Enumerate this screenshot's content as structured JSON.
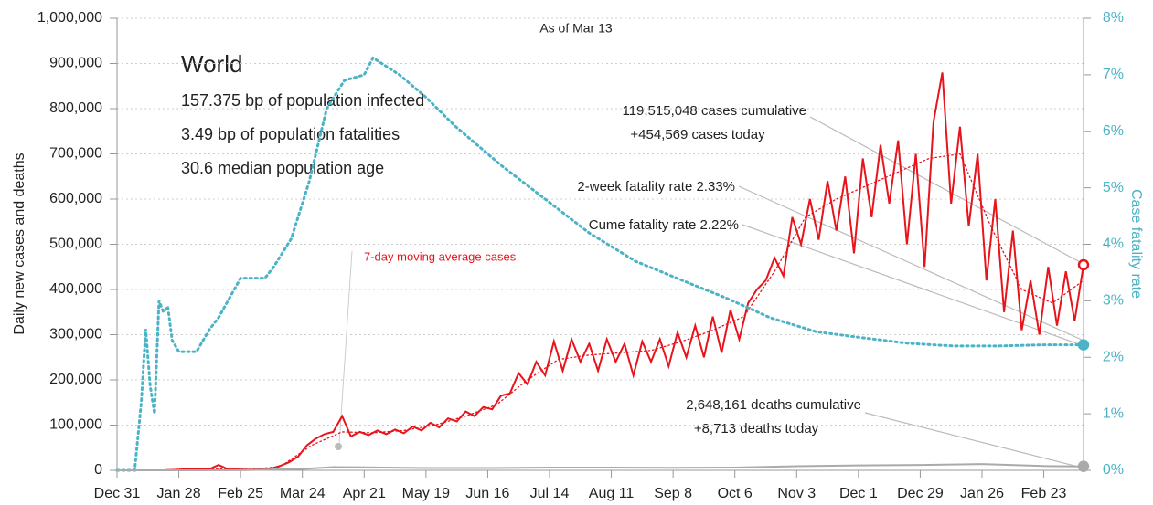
{
  "chart_data": {
    "type": "line",
    "title": "As of Mar 13",
    "ylabel": "Daily new cases and deaths",
    "y2label": "Case fatality rate",
    "region": "World",
    "stats": [
      "157.375 bp of population infected",
      "3.49 bp of population fatalities",
      "30.6 median population age"
    ],
    "annotations": {
      "cases_cumulative": "119,515,048 cases cumulative",
      "cases_today": "+454,569 cases today",
      "two_week_rate": "2-week fatality rate 2.33%",
      "cume_rate": "Cume fatality rate 2.22%",
      "deaths_cumulative": "2,648,161 deaths cumulative",
      "deaths_today": "+8,713 deaths today"
    },
    "xlim": [
      0,
      438
    ],
    "xticks": [
      {
        "value": 0,
        "label": "Dec 31"
      },
      {
        "value": 28,
        "label": "Jan 28"
      },
      {
        "value": 56,
        "label": "Feb 25"
      },
      {
        "value": 84,
        "label": "Mar 24"
      },
      {
        "value": 112,
        "label": "Apr 21"
      },
      {
        "value": 140,
        "label": "May 19"
      },
      {
        "value": 168,
        "label": "Jun 16"
      },
      {
        "value": 196,
        "label": "Jul 14"
      },
      {
        "value": 224,
        "label": "Aug 11"
      },
      {
        "value": 252,
        "label": "Sep 8"
      },
      {
        "value": 280,
        "label": "Oct 6"
      },
      {
        "value": 308,
        "label": "Nov 3"
      },
      {
        "value": 336,
        "label": "Dec 1"
      },
      {
        "value": 364,
        "label": "Dec 29"
      },
      {
        "value": 392,
        "label": "Jan 26"
      },
      {
        "value": 420,
        "label": "Feb 23"
      }
    ],
    "ylim": [
      0,
      1000000
    ],
    "yticks": [
      0,
      {
        "value": 100000,
        "label": "100,000"
      },
      {
        "value": 200000,
        "label": "200,000"
      },
      {
        "value": 300000,
        "label": "300,000"
      },
      {
        "value": 400000,
        "label": "400,000"
      },
      {
        "value": 500000,
        "label": "500,000"
      },
      {
        "value": 600000,
        "label": "600,000"
      },
      {
        "value": 700000,
        "label": "700,000"
      },
      {
        "value": 800000,
        "label": "800,000"
      },
      {
        "value": 900000,
        "label": "900,000"
      },
      {
        "value": 1000000,
        "label": "1,000,000"
      }
    ],
    "y2lim": [
      0,
      8
    ],
    "y2ticks": [
      {
        "value": 0,
        "label": "0%"
      },
      {
        "value": 1,
        "label": "1%"
      },
      {
        "value": 2,
        "label": "2%"
      },
      {
        "value": 3,
        "label": "3%"
      },
      {
        "value": 4,
        "label": "4%"
      },
      {
        "value": 5,
        "label": "5%"
      },
      {
        "value": 6,
        "label": "6%"
      },
      {
        "value": 7,
        "label": "7%"
      },
      {
        "value": 8,
        "label": "8%"
      }
    ],
    "grid": true,
    "series": [
      {
        "color": "#e8141c",
        "style": "solid",
        "axis": "y",
        "x": [
          2,
          6,
          10,
          14,
          18,
          22,
          26,
          30,
          34,
          38,
          42,
          46,
          50,
          54,
          58,
          62,
          66,
          70,
          74,
          78,
          82,
          86,
          90,
          94,
          98,
          102,
          106,
          110,
          114,
          118,
          122,
          126,
          130,
          134,
          138,
          142,
          146,
          150,
          154,
          158,
          162,
          166,
          170,
          174,
          178,
          182,
          186,
          190,
          194,
          198,
          202,
          206,
          210,
          214,
          218,
          222,
          226,
          230,
          234,
          238,
          242,
          246,
          250,
          254,
          258,
          262,
          266,
          270,
          274,
          278,
          282,
          286,
          290,
          294,
          298,
          302,
          306,
          310,
          314,
          318,
          322,
          326,
          330,
          334,
          338,
          342,
          346,
          350,
          354,
          358,
          362,
          366,
          370,
          374,
          378,
          382,
          386,
          390,
          394,
          398,
          402,
          406,
          410,
          414,
          418,
          422,
          426,
          430,
          434,
          438
        ],
        "values": [
          0,
          0,
          0,
          0,
          100,
          200,
          1000,
          2000,
          3000,
          3500,
          3000,
          12000,
          3000,
          2000,
          1500,
          1500,
          2500,
          4000,
          10000,
          18000,
          30000,
          55000,
          70000,
          80000,
          85000,
          120000,
          75000,
          85000,
          78000,
          88000,
          80000,
          90000,
          82000,
          97000,
          88000,
          105000,
          95000,
          115000,
          108000,
          130000,
          120000,
          140000,
          135000,
          165000,
          170000,
          215000,
          190000,
          240000,
          210000,
          285000,
          220000,
          290000,
          240000,
          280000,
          220000,
          290000,
          240000,
          280000,
          210000,
          285000,
          240000,
          290000,
          230000,
          305000,
          250000,
          320000,
          250000,
          340000,
          260000,
          355000,
          290000,
          370000,
          400000,
          420000,
          470000,
          430000,
          560000,
          500000,
          600000,
          510000,
          640000,
          530000,
          650000,
          480000,
          690000,
          560000,
          720000,
          590000,
          730000,
          500000,
          700000,
          450000,
          770000,
          880000,
          590000,
          760000,
          540000,
          700000,
          420000,
          600000,
          350000,
          530000,
          310000,
          420000,
          300000,
          450000,
          320000,
          440000,
          330000,
          454569
        ]
      },
      {
        "name": "7-day moving average cases",
        "color": "#e8141c",
        "style": "dotted",
        "axis": "y",
        "x": [
          4,
          18,
          32,
          46,
          60,
          74,
          88,
          102,
          116,
          130,
          144,
          158,
          172,
          186,
          200,
          214,
          228,
          242,
          256,
          270,
          284,
          298,
          312,
          326,
          340,
          354,
          368,
          382,
          396,
          410,
          424,
          438
        ],
        "values": [
          0,
          500,
          2000,
          3000,
          2000,
          8000,
          55000,
          85000,
          83000,
          88000,
          100000,
          120000,
          145000,
          200000,
          245000,
          255000,
          260000,
          265000,
          285000,
          310000,
          340000,
          440000,
          560000,
          600000,
          630000,
          660000,
          690000,
          700000,
          540000,
          400000,
          370000,
          420000
        ]
      },
      {
        "color": "#4bb3c6",
        "style": "dotted",
        "axis": "y2",
        "x": [
          0,
          8,
          11,
          13,
          15,
          17,
          19,
          21,
          23,
          25,
          28,
          36,
          42,
          46,
          56,
          67,
          71,
          79,
          87,
          95,
          103,
          112,
          116,
          120,
          128,
          140,
          153,
          174,
          194,
          214,
          235,
          260,
          276,
          296,
          317,
          337,
          358,
          379,
          399,
          420,
          438
        ],
        "values": [
          0,
          0,
          1.2,
          2.5,
          1.5,
          1.0,
          3.0,
          2.8,
          2.9,
          2.3,
          2.1,
          2.1,
          2.5,
          2.7,
          3.4,
          3.4,
          3.6,
          4.1,
          5.1,
          6.4,
          6.9,
          7.0,
          7.3,
          7.2,
          7.0,
          6.6,
          6.1,
          5.4,
          4.8,
          4.2,
          3.7,
          3.3,
          3.05,
          2.7,
          2.45,
          2.35,
          2.25,
          2.2,
          2.2,
          2.22,
          2.22
        ]
      },
      {
        "color": "#aaaaaa",
        "style": "solid",
        "axis": "y",
        "x": [
          0,
          28,
          56,
          84,
          98,
          112,
          140,
          168,
          196,
          224,
          252,
          280,
          308,
          336,
          364,
          392,
          420,
          438
        ],
        "values": [
          0,
          100,
          200,
          3000,
          7000,
          6500,
          5000,
          5000,
          6000,
          6000,
          5500,
          6000,
          9000,
          11000,
          12000,
          14000,
          9500,
          8713
        ]
      }
    ]
  }
}
